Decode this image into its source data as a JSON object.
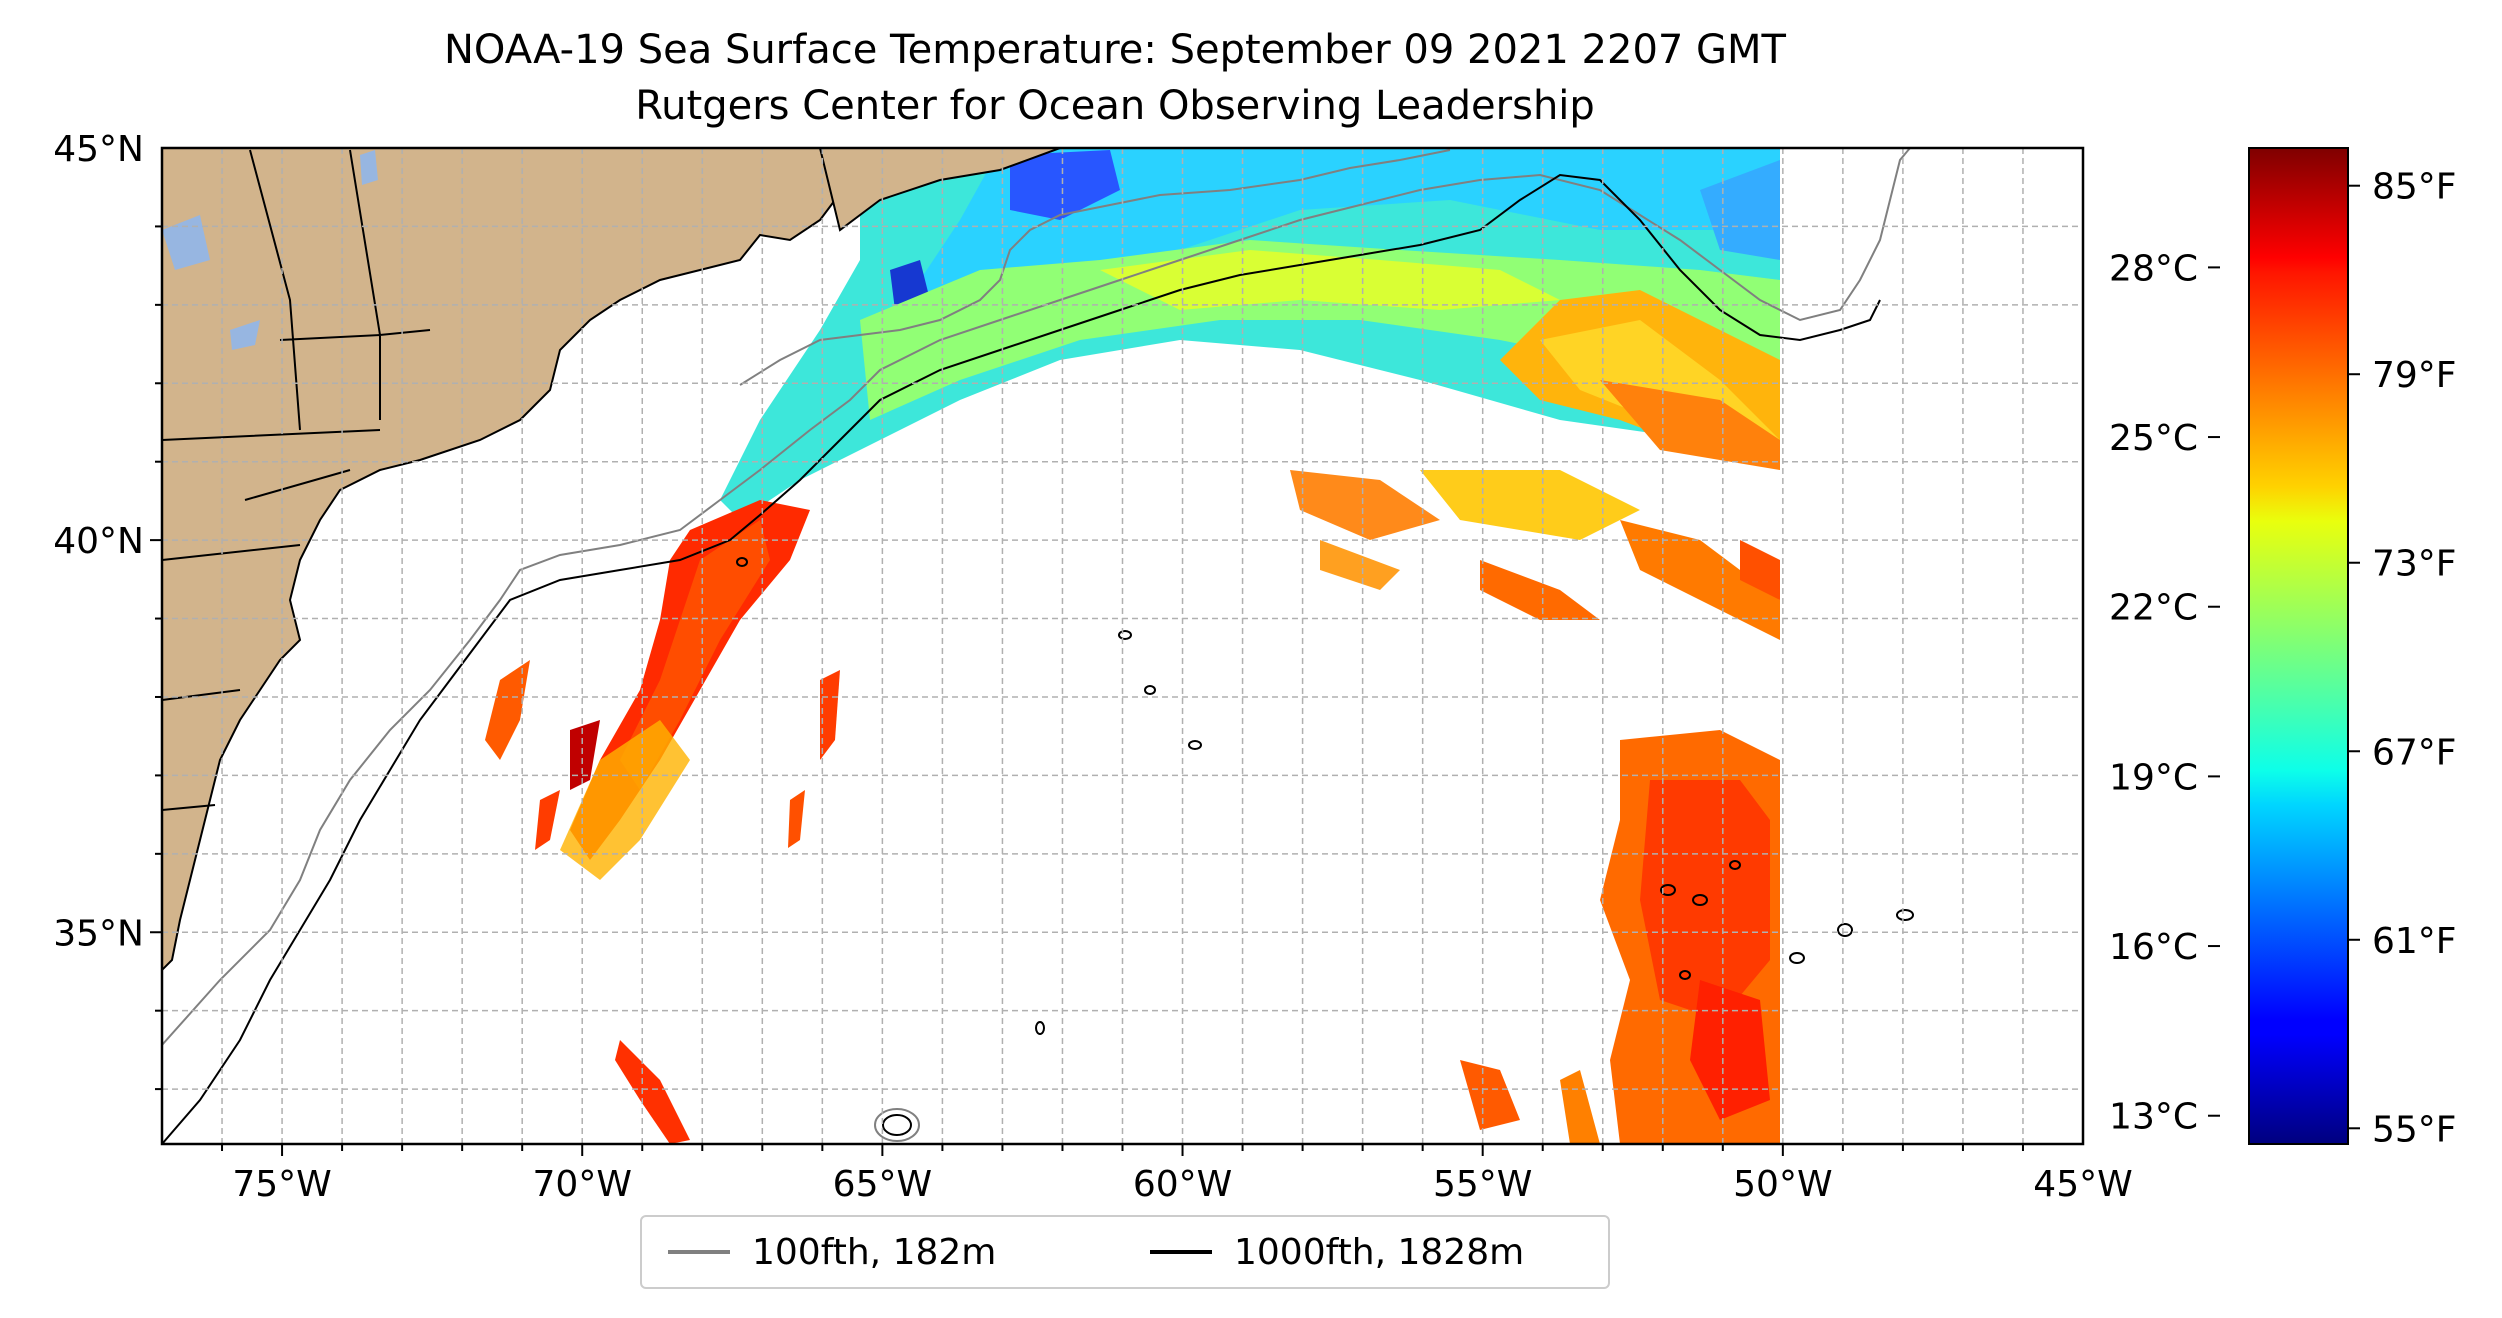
{
  "title": {
    "line1": "NOAA-19 Sea Surface Temperature: September 09 2021 2207 GMT",
    "line2": "Rutgers Center for Ocean Observing Leadership"
  },
  "map": {
    "lon_ticks": [
      "75°W",
      "70°W",
      "65°W",
      "60°W",
      "55°W",
      "50°W",
      "45°W"
    ],
    "lat_ticks": [
      "45°N",
      "40°N",
      "35°N"
    ],
    "lon_range": [
      -77,
      -45
    ],
    "lat_range": [
      32.3,
      45
    ],
    "grid": true,
    "land_color": "#d2b48c",
    "lake_color": "#97b6e1"
  },
  "legend": {
    "placement": "bottom-center",
    "items": [
      {
        "label": "100fth, 182m",
        "color": "#808080"
      },
      {
        "label": "1000fth, 1828m",
        "color": "#000000"
      }
    ]
  },
  "colorbar": {
    "colormap": "jet",
    "celsius_ticks": [
      "28°C",
      "25°C",
      "22°C",
      "19°C",
      "16°C",
      "13°C"
    ],
    "fahrenheit_ticks": [
      "85°F",
      "79°F",
      "73°F",
      "67°F",
      "61°F",
      "55°F"
    ]
  }
}
